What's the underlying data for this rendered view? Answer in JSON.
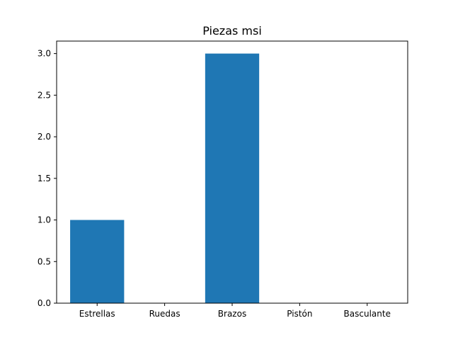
{
  "chart_data": {
    "type": "bar",
    "title": "Piezas msi",
    "xlabel": "",
    "ylabel": "",
    "categories": [
      "Estrellas",
      "Ruedas",
      "Brazos",
      "Pistón",
      "Basculante"
    ],
    "values": [
      1,
      0,
      3,
      0,
      0
    ],
    "ylim": [
      0,
      3.15
    ],
    "yticks": [
      0.0,
      0.5,
      1.0,
      1.5,
      2.0,
      2.5,
      3.0
    ],
    "ytick_labels": [
      "0.0",
      "0.5",
      "1.0",
      "1.5",
      "2.0",
      "2.5",
      "3.0"
    ],
    "bar_color": "#1f77b4",
    "grid": false,
    "legend": "none"
  }
}
